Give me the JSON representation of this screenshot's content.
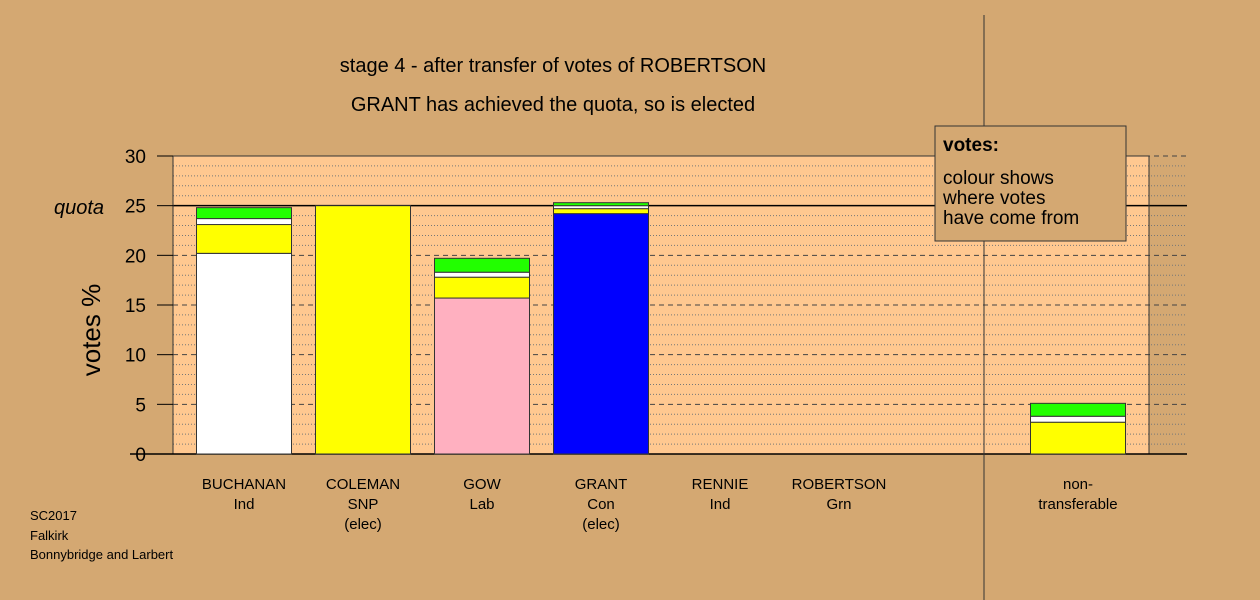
{
  "chart_data": {
    "type": "bar",
    "stacked": true,
    "title": "stage 4 - after transfer of votes of ROBERTSON",
    "subtitle": "GRANT has achieved the quota, so is elected",
    "ylabel": "votes %",
    "ylim": [
      0,
      30
    ],
    "yticks": [
      "0",
      "5",
      "10",
      "15",
      "20",
      "25",
      "30"
    ],
    "quota": 25,
    "quota_label": "quota",
    "grid": true,
    "legend": {
      "title": "votes:",
      "lines": [
        "colour shows",
        "where votes",
        "have come from"
      ],
      "position": "top-right"
    },
    "candidates": [
      {
        "name": "BUCHANAN",
        "party": "Ind",
        "status": "",
        "segments": [
          {
            "color": "#ffffff",
            "value": 20.2
          },
          {
            "color": "#ffff00",
            "value": 2.9
          },
          {
            "color": "#ffffff",
            "value": 0.6
          },
          {
            "color": "#22ff00",
            "value": 1.1
          }
        ]
      },
      {
        "name": "COLEMAN",
        "party": "SNP",
        "status": "(elec)",
        "segments": [
          {
            "color": "#ffff00",
            "value": 25.0
          }
        ]
      },
      {
        "name": "GOW",
        "party": "Lab",
        "status": "",
        "segments": [
          {
            "color": "#ffb0c0",
            "value": 15.7
          },
          {
            "color": "#ffff00",
            "value": 2.1
          },
          {
            "color": "#ffffff",
            "value": 0.5
          },
          {
            "color": "#22ff00",
            "value": 1.4
          }
        ]
      },
      {
        "name": "GRANT",
        "party": "Con",
        "status": "(elec)",
        "segments": [
          {
            "color": "#0000ff",
            "value": 24.2
          },
          {
            "color": "#ffff00",
            "value": 0.5
          },
          {
            "color": "#ffffff",
            "value": 0.3
          },
          {
            "color": "#22ff00",
            "value": 0.3
          }
        ]
      },
      {
        "name": "RENNIE",
        "party": "Ind",
        "status": "",
        "segments": []
      },
      {
        "name": "ROBERTSON",
        "party": "Grn",
        "status": "",
        "segments": []
      }
    ],
    "nontransferable": {
      "label_lines": [
        "non-",
        "transferable"
      ],
      "segments": [
        {
          "color": "#ffff00",
          "value": 3.2
        },
        {
          "color": "#ffffff",
          "value": 0.6
        },
        {
          "color": "#22ff00",
          "value": 1.3
        }
      ]
    }
  },
  "source": [
    "SC2017",
    "Falkirk",
    "Bonnybridge and Larbert"
  ]
}
